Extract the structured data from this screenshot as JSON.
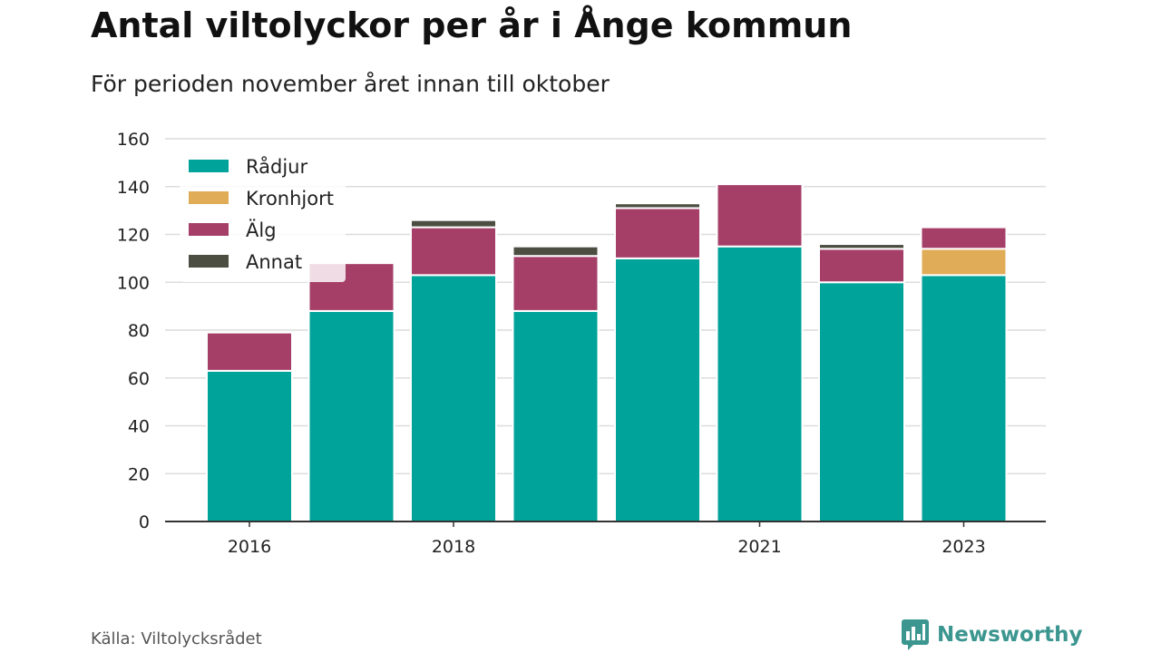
{
  "title": "Antal viltolyckor per år i Ånge kommun",
  "subtitle": "För perioden november året innan till oktober",
  "source": "Källa: Viltolycksrådet",
  "brand": {
    "name": "Newsworthy",
    "icon": "bar-chart-bubble-icon",
    "color": "#3c9690"
  },
  "chart_data": {
    "type": "bar",
    "stacked": true,
    "categories": [
      "2016",
      "2017",
      "2018",
      "2019",
      "2020",
      "2021",
      "2022",
      "2023"
    ],
    "x_tick_labels": [
      "2016",
      "",
      "2018",
      "",
      "",
      "2021",
      "",
      "2023"
    ],
    "series": [
      {
        "name": "Rådjur",
        "color": "#00a399",
        "values": [
          63,
          88,
          103,
          88,
          110,
          115,
          100,
          103
        ]
      },
      {
        "name": "Kronhjort",
        "color": "#e0ac58",
        "values": [
          0,
          0,
          0,
          0,
          0,
          0,
          0,
          11
        ]
      },
      {
        "name": "Älg",
        "color": "#a53f68",
        "values": [
          16,
          20,
          20,
          23,
          21,
          26,
          14,
          9
        ]
      },
      {
        "name": "Annat",
        "color": "#4b4e40",
        "values": [
          0,
          0,
          3,
          4,
          2,
          0,
          2,
          0
        ]
      }
    ],
    "ylim": [
      0,
      160
    ],
    "yticks": [
      0,
      20,
      40,
      60,
      80,
      100,
      120,
      140,
      160
    ],
    "grid": true,
    "legend": "top-left"
  }
}
